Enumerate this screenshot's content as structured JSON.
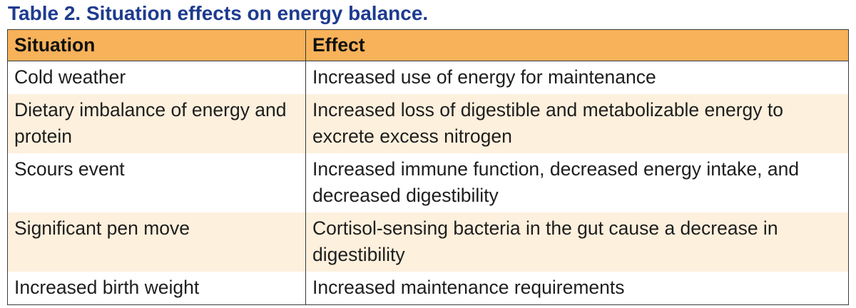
{
  "title": "Table 2.  Situation effects on energy balance.",
  "colors": {
    "title": "#1d3b8f",
    "header_bg": "#f7b25a",
    "alt_row_bg": "#fdf0dd",
    "row_bg": "#ffffff"
  },
  "table": {
    "headers": [
      "Situation",
      "Effect"
    ],
    "rows": [
      {
        "situation": "Cold weather",
        "effect": "Increased use of energy for maintenance"
      },
      {
        "situation": "Dietary imbalance of energy and protein",
        "effect": "Increased loss of digestible and metabolizable energy to excrete excess nitrogen"
      },
      {
        "situation": "Scours event",
        "effect": "Increased immune function, decreased energy intake, and decreased digestibility"
      },
      {
        "situation": "Significant pen move",
        "effect": "Cortisol-sensing bacteria in the gut cause a decrease in digestibility"
      },
      {
        "situation": "Increased birth weight",
        "effect": "Increased maintenance requirements"
      }
    ]
  }
}
